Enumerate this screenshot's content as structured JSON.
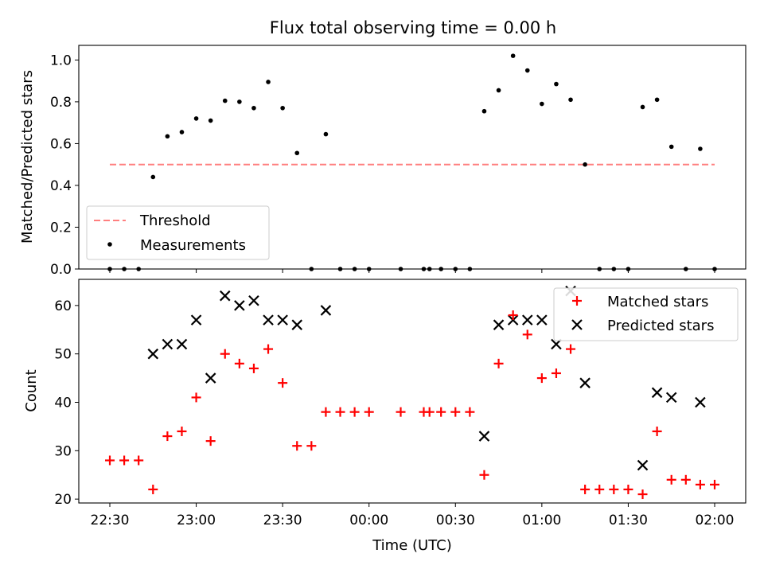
{
  "figure": {
    "title": "Flux total observing time = 0.00 h"
  },
  "chart_data": [
    {
      "type": "scatter",
      "panel": "top",
      "ylabel": "Matched/Predicted stars",
      "xlabel": "",
      "ylim": [
        0,
        1.07
      ],
      "yticks": [
        "0.0",
        "0.2",
        "0.4",
        "0.6",
        "0.8",
        "1.0"
      ],
      "ytick_values": [
        0.0,
        0.2,
        0.4,
        0.6,
        0.8,
        1.0
      ],
      "legend_location": "lower-left",
      "threshold": {
        "name": "Threshold",
        "value": 0.5,
        "x_start": "22:30",
        "x_end": "02:00",
        "color": "#ff7f7f",
        "style": "dashed"
      },
      "series": [
        {
          "name": "Measurements",
          "color": "#000000",
          "marker": "dot",
          "points": [
            {
              "t": "22:30",
              "y": 0.0
            },
            {
              "t": "22:35",
              "y": 0.0
            },
            {
              "t": "22:40",
              "y": 0.0
            },
            {
              "t": "22:45",
              "y": 0.44
            },
            {
              "t": "22:50",
              "y": 0.635
            },
            {
              "t": "22:55",
              "y": 0.655
            },
            {
              "t": "23:00",
              "y": 0.72
            },
            {
              "t": "23:05",
              "y": 0.71
            },
            {
              "t": "23:10",
              "y": 0.805
            },
            {
              "t": "23:15",
              "y": 0.8
            },
            {
              "t": "23:20",
              "y": 0.77
            },
            {
              "t": "23:25",
              "y": 0.895
            },
            {
              "t": "23:30",
              "y": 0.77
            },
            {
              "t": "23:35",
              "y": 0.555
            },
            {
              "t": "23:40",
              "y": 0.0
            },
            {
              "t": "23:45",
              "y": 0.645
            },
            {
              "t": "23:50",
              "y": 0.0
            },
            {
              "t": "23:55",
              "y": 0.0
            },
            {
              "t": "00:00",
              "y": 0.0
            },
            {
              "t": "00:11",
              "y": 0.0
            },
            {
              "t": "00:19",
              "y": 0.0
            },
            {
              "t": "00:21",
              "y": 0.0
            },
            {
              "t": "00:25",
              "y": 0.0
            },
            {
              "t": "00:30",
              "y": 0.0
            },
            {
              "t": "00:35",
              "y": 0.0
            },
            {
              "t": "00:40",
              "y": 0.755
            },
            {
              "t": "00:45",
              "y": 0.855
            },
            {
              "t": "00:50",
              "y": 1.02
            },
            {
              "t": "00:55",
              "y": 0.95
            },
            {
              "t": "01:00",
              "y": 0.79
            },
            {
              "t": "01:05",
              "y": 0.885
            },
            {
              "t": "01:10",
              "y": 0.81
            },
            {
              "t": "01:15",
              "y": 0.5
            },
            {
              "t": "01:20",
              "y": 0.0
            },
            {
              "t": "01:25",
              "y": 0.0
            },
            {
              "t": "01:30",
              "y": 0.0
            },
            {
              "t": "01:35",
              "y": 0.775
            },
            {
              "t": "01:40",
              "y": 0.81
            },
            {
              "t": "01:45",
              "y": 0.585
            },
            {
              "t": "01:50",
              "y": 0.0
            },
            {
              "t": "01:55",
              "y": 0.575
            },
            {
              "t": "02:00",
              "y": 0.0
            }
          ]
        }
      ]
    },
    {
      "type": "scatter",
      "panel": "bottom",
      "xlabel": "Time (UTC)",
      "ylabel": "Count",
      "ylim": [
        19.2,
        65.4
      ],
      "yticks": [
        "20",
        "30",
        "40",
        "50",
        "60"
      ],
      "ytick_values": [
        20,
        30,
        40,
        50,
        60
      ],
      "xticks": [
        "22:30",
        "23:00",
        "23:30",
        "00:00",
        "00:30",
        "01:00",
        "01:30",
        "02:00"
      ],
      "legend_location": "top-right",
      "series": [
        {
          "name": "Matched stars",
          "color": "#ff0000",
          "marker": "plus",
          "points": [
            {
              "t": "22:30",
              "y": 28
            },
            {
              "t": "22:35",
              "y": 28
            },
            {
              "t": "22:40",
              "y": 28
            },
            {
              "t": "22:45",
              "y": 22
            },
            {
              "t": "22:50",
              "y": 33
            },
            {
              "t": "22:55",
              "y": 34
            },
            {
              "t": "23:00",
              "y": 41
            },
            {
              "t": "23:05",
              "y": 32
            },
            {
              "t": "23:10",
              "y": 50
            },
            {
              "t": "23:15",
              "y": 48
            },
            {
              "t": "23:20",
              "y": 47
            },
            {
              "t": "23:25",
              "y": 51
            },
            {
              "t": "23:30",
              "y": 44
            },
            {
              "t": "23:35",
              "y": 31
            },
            {
              "t": "23:40",
              "y": 31
            },
            {
              "t": "23:45",
              "y": 38
            },
            {
              "t": "23:50",
              "y": 38
            },
            {
              "t": "23:55",
              "y": 38
            },
            {
              "t": "00:00",
              "y": 38
            },
            {
              "t": "00:11",
              "y": 38
            },
            {
              "t": "00:19",
              "y": 38
            },
            {
              "t": "00:21",
              "y": 38
            },
            {
              "t": "00:25",
              "y": 38
            },
            {
              "t": "00:30",
              "y": 38
            },
            {
              "t": "00:35",
              "y": 38
            },
            {
              "t": "00:40",
              "y": 25
            },
            {
              "t": "00:45",
              "y": 48
            },
            {
              "t": "00:50",
              "y": 58
            },
            {
              "t": "00:55",
              "y": 54
            },
            {
              "t": "01:00",
              "y": 45
            },
            {
              "t": "01:05",
              "y": 46
            },
            {
              "t": "01:10",
              "y": 51
            },
            {
              "t": "01:15",
              "y": 22
            },
            {
              "t": "01:20",
              "y": 22
            },
            {
              "t": "01:25",
              "y": 22
            },
            {
              "t": "01:30",
              "y": 22
            },
            {
              "t": "01:35",
              "y": 21
            },
            {
              "t": "01:40",
              "y": 34
            },
            {
              "t": "01:45",
              "y": 24
            },
            {
              "t": "01:50",
              "y": 24
            },
            {
              "t": "01:55",
              "y": 23
            },
            {
              "t": "02:00",
              "y": 23
            }
          ]
        },
        {
          "name": "Predicted stars",
          "color": "#000000",
          "marker": "x",
          "points": [
            {
              "t": "22:45",
              "y": 50
            },
            {
              "t": "22:50",
              "y": 52
            },
            {
              "t": "22:55",
              "y": 52
            },
            {
              "t": "23:00",
              "y": 57
            },
            {
              "t": "23:05",
              "y": 45
            },
            {
              "t": "23:10",
              "y": 62
            },
            {
              "t": "23:15",
              "y": 60
            },
            {
              "t": "23:20",
              "y": 61
            },
            {
              "t": "23:25",
              "y": 57
            },
            {
              "t": "23:30",
              "y": 57
            },
            {
              "t": "23:35",
              "y": 56
            },
            {
              "t": "23:45",
              "y": 59
            },
            {
              "t": "00:40",
              "y": 33
            },
            {
              "t": "00:45",
              "y": 56
            },
            {
              "t": "00:50",
              "y": 57
            },
            {
              "t": "00:55",
              "y": 57
            },
            {
              "t": "01:00",
              "y": 57
            },
            {
              "t": "01:05",
              "y": 52
            },
            {
              "t": "01:10",
              "y": 63
            },
            {
              "t": "01:15",
              "y": 44
            },
            {
              "t": "01:35",
              "y": 27
            },
            {
              "t": "01:40",
              "y": 42
            },
            {
              "t": "01:45",
              "y": 41
            },
            {
              "t": "01:55",
              "y": 40
            }
          ]
        }
      ]
    }
  ]
}
